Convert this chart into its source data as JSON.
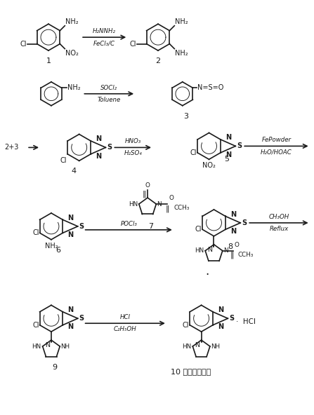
{
  "bg_color": "#ffffff",
  "fc": "#1a1a1a",
  "figsize": [
    4.47,
    5.92
  ],
  "dpi": 100,
  "fs_struct": 7.0,
  "fs_label": 8.0,
  "fs_reagent": 6.2,
  "lw": 1.2,
  "R": 19,
  "reagents": {
    "arr1": {
      "top": "H₂NNH₂",
      "bot": "FeCl₃/C"
    },
    "arr2": {
      "top": "SOCl₂",
      "bot": "Toluene"
    },
    "arr3": {
      "top": "HNO₃",
      "bot": "H₂SO₄"
    },
    "arr4": {
      "top": "FePowder",
      "bot": "H₂O/HOAC"
    },
    "arr5": {
      "top": "POCl₃",
      "bot": ""
    },
    "arr6": {
      "top": "CH₃OH",
      "bot": "Reflux"
    },
    "arr7": {
      "top": "HCl",
      "bot": "C₂H₅OH"
    }
  },
  "labels": {
    "c1": "1",
    "c2": "2",
    "c3": "3",
    "c4": "4",
    "c5": "5",
    "c6": "6",
    "c7": "7",
    "c8": "8",
    "c9": "9",
    "c10": "10",
    "c10_hcl": "·  HCl",
    "c10_name": "盐酸替扎尼定",
    "c23": "2+3"
  }
}
